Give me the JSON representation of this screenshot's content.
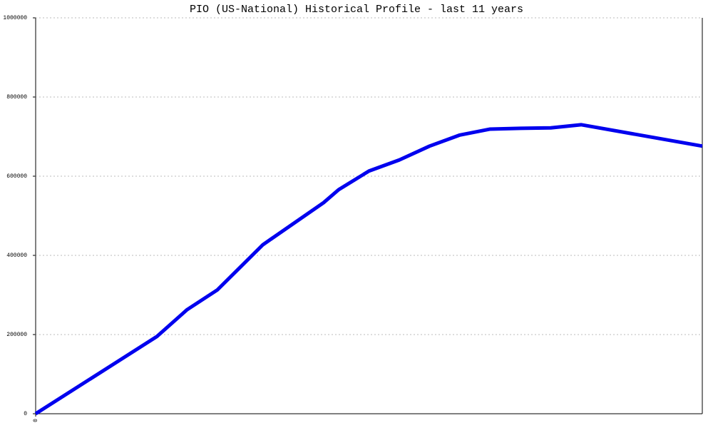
{
  "chart_data": {
    "type": "line",
    "title": "PIO (US-National) Historical Profile - last 11 years",
    "x": [
      0,
      2,
      2.5,
      3,
      3.75,
      4.75,
      5,
      5.5,
      6,
      6.5,
      7,
      7.5,
      8,
      8.5,
      9,
      11
    ],
    "series": [
      {
        "color": "#0000ee",
        "values": [
          0,
          195000,
          263000,
          313000,
          427000,
          533000,
          566000,
          613000,
          641000,
          676000,
          704000,
          719000,
          721000,
          722000,
          730000,
          676000
        ]
      }
    ],
    "xlim": [
      0,
      11
    ],
    "xticks": [
      0
    ],
    "ylim": [
      0,
      1000000
    ],
    "yticks": [
      0,
      200000,
      400000,
      600000,
      800000,
      1000000
    ],
    "grid": true
  }
}
